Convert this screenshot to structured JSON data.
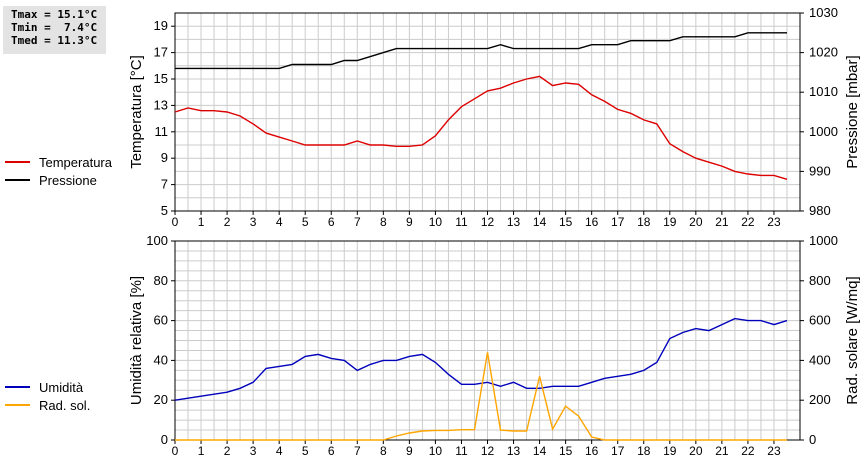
{
  "stats": {
    "tmax": "Tmax = 15.1°C",
    "tmin": "Tmin =  7.4°C",
    "tmed": "Tmed = 11.3°C"
  },
  "colors": {
    "temperature": "#dd0000",
    "pressure": "#000000",
    "humidity": "#0000bb",
    "solar": "#ffa500",
    "grid": "#cccccc"
  },
  "chart_data": [
    {
      "type": "line",
      "title": "",
      "xlabel": "",
      "ylabel": "Temperatura [°C]",
      "y2label": "Pressione [mbar]",
      "xlim": [
        0,
        24
      ],
      "ylim": [
        5,
        20
      ],
      "y2lim": [
        980,
        1030
      ],
      "xticks": [
        "0",
        "1",
        "2",
        "3",
        "4",
        "5",
        "6",
        "7",
        "8",
        "9",
        "10",
        "11",
        "12",
        "13",
        "14",
        "15",
        "16",
        "17",
        "18",
        "19",
        "20",
        "21",
        "22",
        "23"
      ],
      "yticks": [
        "5",
        "7",
        "9",
        "11",
        "13",
        "15",
        "17",
        "19"
      ],
      "y2ticks": [
        "980",
        "990",
        "1000",
        "1010",
        "1020",
        "1030"
      ],
      "grid": true,
      "legend": "left",
      "series": [
        {
          "name": "Temperatura",
          "axis": "left",
          "color": "#dd0000",
          "x": [
            0,
            0.5,
            1,
            1.5,
            2,
            2.5,
            3,
            3.5,
            4,
            4.5,
            5,
            5.5,
            6,
            6.5,
            7,
            7.5,
            8,
            8.5,
            9,
            9.5,
            10,
            10.5,
            11,
            11.5,
            12,
            12.5,
            13,
            13.5,
            14,
            14.5,
            15,
            15.5,
            16,
            16.5,
            17,
            17.5,
            18,
            18.5,
            19,
            19.5,
            20,
            20.5,
            21,
            21.5,
            22,
            22.5,
            23,
            23.5
          ],
          "y": [
            12.5,
            12.8,
            12.6,
            12.6,
            12.5,
            12.2,
            11.6,
            10.9,
            10.6,
            10.3,
            10.0,
            10.0,
            10.0,
            10.0,
            10.3,
            10.0,
            10.0,
            9.9,
            9.9,
            10.0,
            10.7,
            11.9,
            12.9,
            13.5,
            14.1,
            14.3,
            14.7,
            15.0,
            15.2,
            14.5,
            14.7,
            14.6,
            13.8,
            13.3,
            12.7,
            12.4,
            11.9,
            11.6,
            10.1,
            9.5,
            9.0,
            8.7,
            8.4,
            8.0,
            7.8,
            7.7,
            7.7,
            7.4
          ]
        },
        {
          "name": "Pressione",
          "axis": "right",
          "color": "#000000",
          "x": [
            0,
            0.5,
            1,
            1.5,
            2,
            2.5,
            3,
            3.5,
            4,
            4.5,
            5,
            5.5,
            6,
            6.5,
            7,
            7.5,
            8,
            8.5,
            9,
            9.5,
            10,
            10.5,
            11,
            11.5,
            12,
            12.5,
            13,
            13.5,
            14,
            14.5,
            15,
            15.5,
            16,
            16.5,
            17,
            17.5,
            18,
            18.5,
            19,
            19.5,
            20,
            20.5,
            21,
            21.5,
            22,
            22.5,
            23,
            23.5
          ],
          "y": [
            1016,
            1016,
            1016,
            1016,
            1016,
            1016,
            1016,
            1016,
            1016,
            1017,
            1017,
            1017,
            1017,
            1018,
            1018,
            1019,
            1020,
            1021,
            1021,
            1021,
            1021,
            1021,
            1021,
            1021,
            1021,
            1022,
            1021,
            1021,
            1021,
            1021,
            1021,
            1021,
            1022,
            1022,
            1022,
            1023,
            1023,
            1023,
            1023,
            1024,
            1024,
            1024,
            1024,
            1024,
            1025,
            1025,
            1025,
            1025
          ]
        }
      ]
    },
    {
      "type": "line",
      "title": "",
      "xlabel": "",
      "ylabel": "Umidità relativa [%]",
      "y2label": "Rad. solare [W/mq]",
      "xlim": [
        0,
        24
      ],
      "ylim": [
        0,
        100
      ],
      "y2lim": [
        0,
        1000
      ],
      "xticks": [
        "0",
        "1",
        "2",
        "3",
        "4",
        "5",
        "6",
        "7",
        "8",
        "9",
        "10",
        "11",
        "12",
        "13",
        "14",
        "15",
        "16",
        "17",
        "18",
        "19",
        "20",
        "21",
        "22",
        "23"
      ],
      "yticks": [
        "0",
        "20",
        "40",
        "60",
        "80",
        "100"
      ],
      "y2ticks": [
        "0",
        "200",
        "400",
        "600",
        "800",
        "1000"
      ],
      "grid": true,
      "legend": "left",
      "series": [
        {
          "name": "Umidità",
          "axis": "left",
          "color": "#0000bb",
          "x": [
            0,
            0.5,
            1,
            1.5,
            2,
            2.5,
            3,
            3.5,
            4,
            4.5,
            5,
            5.5,
            6,
            6.5,
            7,
            7.5,
            8,
            8.5,
            9,
            9.5,
            10,
            10.5,
            11,
            11.5,
            12,
            12.5,
            13,
            13.5,
            14,
            14.5,
            15,
            15.5,
            16,
            16.5,
            17,
            17.5,
            18,
            18.5,
            19,
            19.5,
            20,
            20.5,
            21,
            21.5,
            22,
            22.5,
            23,
            23.5
          ],
          "y": [
            20,
            21,
            22,
            23,
            24,
            26,
            29,
            36,
            37,
            38,
            42,
            43,
            41,
            40,
            35,
            38,
            40,
            40,
            42,
            43,
            39,
            33,
            28,
            28,
            29,
            27,
            29,
            26,
            26,
            27,
            27,
            27,
            29,
            31,
            32,
            33,
            35,
            39,
            51,
            54,
            56,
            55,
            58,
            61,
            60,
            60,
            58,
            60
          ]
        },
        {
          "name": "Rad. sol.",
          "axis": "right",
          "color": "#ffa500",
          "x": [
            0,
            0.5,
            1,
            1.5,
            2,
            2.5,
            3,
            3.5,
            4,
            4.5,
            5,
            5.5,
            6,
            6.5,
            7,
            7.5,
            8,
            8.5,
            9,
            9.5,
            10,
            10.5,
            11,
            11.5,
            12,
            12.5,
            13,
            13.5,
            14,
            14.5,
            15,
            15.5,
            16,
            16.5,
            17,
            17.5,
            18,
            18.5,
            19,
            19.5,
            20,
            20.5,
            21,
            21.5,
            22,
            22.5,
            23,
            23.5
          ],
          "y": [
            0,
            0,
            0,
            0,
            0,
            0,
            0,
            0,
            0,
            0,
            0,
            0,
            0,
            0,
            0,
            0,
            0,
            20,
            35,
            45,
            48,
            48,
            52,
            52,
            440,
            50,
            45,
            45,
            320,
            55,
            170,
            120,
            15,
            0,
            0,
            0,
            0,
            0,
            0,
            0,
            0,
            0,
            0,
            0,
            0,
            0,
            0,
            0
          ]
        }
      ]
    }
  ]
}
